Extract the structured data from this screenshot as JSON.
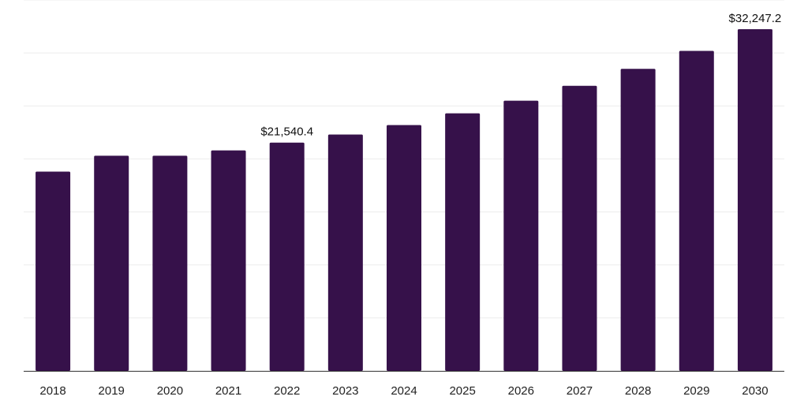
{
  "chart_data": {
    "type": "bar",
    "categories": [
      "2018",
      "2019",
      "2020",
      "2021",
      "2022",
      "2023",
      "2024",
      "2025",
      "2026",
      "2027",
      "2028",
      "2029",
      "2030"
    ],
    "values": [
      18800,
      20300,
      20300,
      20800,
      21540.4,
      22300,
      23200,
      24300,
      25500,
      26900,
      28500,
      30200,
      32247.2
    ],
    "data_labels": [
      {
        "index": 4,
        "text": "$21,540.4"
      },
      {
        "index": 12,
        "text": "$32,247.2"
      }
    ],
    "ylim": [
      0,
      35000
    ],
    "grid": true,
    "legend": "none",
    "bar_color": "#36114a"
  }
}
